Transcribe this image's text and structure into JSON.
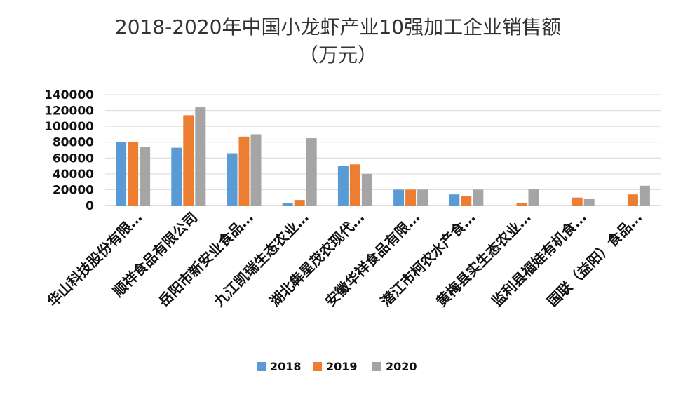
{
  "chart_data": {
    "type": "bar",
    "title_lines": [
      "2018-2020年中国小龙虾产业10强加工企业销售额",
      "（万元）"
    ],
    "xlabel": "",
    "ylabel": "",
    "ylim": [
      0,
      140000
    ],
    "yticks": [
      0,
      20000,
      40000,
      60000,
      80000,
      100000,
      120000,
      140000
    ],
    "ytick_labels": [
      "0",
      "20000",
      "40000",
      "60000",
      "80000",
      "100000",
      "120000",
      "140000"
    ],
    "grid": true,
    "legend_position": "bottom",
    "categories": [
      "华山科技股份有限…",
      "顺祥食品有限公司",
      "岳阳市新安业食品…",
      "九江凯瑞生态农业…",
      "湖北犇星茂农现代…",
      "安徽华祥食品有限…",
      "潜江市柯农水产食…",
      "黄梅县实生态农业…",
      "监利县福娃有机食…",
      "国联（益阳）食品…"
    ],
    "series": [
      {
        "name": "2018",
        "color": "#5b9bd5",
        "values": [
          80000,
          73000,
          66000,
          3000,
          50000,
          20000,
          14000,
          0,
          0,
          0
        ]
      },
      {
        "name": "2019",
        "color": "#ed7d31",
        "values": [
          80000,
          114000,
          87000,
          7000,
          52000,
          20000,
          12000,
          3000,
          10000,
          14000
        ]
      },
      {
        "name": "2020",
        "color": "#a5a5a5",
        "values": [
          74000,
          124000,
          90000,
          85000,
          40000,
          20000,
          20000,
          21000,
          8000,
          25000
        ]
      }
    ]
  }
}
